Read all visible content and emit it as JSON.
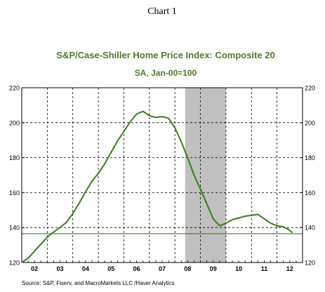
{
  "page_title": "Chart 1",
  "chart_data": {
    "type": "line",
    "title": "S&P/Case-Shiller Home Price Index: Composite 20",
    "subtitle": "SA, Jan-00=100",
    "source": "Source:  S&P, Fiserv, and MacroMarkets LLC /Haver Analytics",
    "x_tick_labels": [
      "02",
      "03",
      "04",
      "05",
      "06",
      "07",
      "08",
      "09",
      "10",
      "11",
      "12"
    ],
    "x_domain": [
      2001.5,
      2012.5
    ],
    "y_ticks": [
      120,
      140,
      160,
      180,
      200,
      220
    ],
    "ylim": [
      120,
      220
    ],
    "grid": true,
    "recession_band": [
      2007.9,
      2009.5
    ],
    "reference_line_y": 136.5,
    "colors": {
      "line": "#3a7d1e",
      "reference_line": "#3a7d1e",
      "band": "#c0c0c0",
      "title": "#4b7a2b",
      "grid": "#000000"
    },
    "series": [
      {
        "x": [
          2001.5,
          2001.75,
          2002.0,
          2002.25,
          2002.5,
          2002.75,
          2003.0,
          2003.25,
          2003.5,
          2003.75,
          2004.0,
          2004.25,
          2004.5,
          2004.75,
          2005.0,
          2005.25,
          2005.5,
          2005.75,
          2006.0,
          2006.25,
          2006.5,
          2006.75,
          2007.0,
          2007.25,
          2007.5,
          2007.75,
          2008.0,
          2008.25,
          2008.5,
          2008.75,
          2009.0,
          2009.25,
          2009.5,
          2009.75,
          2010.0,
          2010.25,
          2010.5,
          2010.75,
          2011.0,
          2011.25,
          2011.5,
          2011.75,
          2012.0,
          2012.1
        ],
        "values": [
          120,
          122.5,
          126.5,
          130.5,
          134.5,
          137.5,
          140.0,
          143.0,
          148.0,
          154.0,
          160.5,
          166.5,
          171.0,
          176.5,
          183.0,
          189.5,
          195.0,
          200.5,
          205.0,
          206.5,
          204.0,
          203.0,
          203.5,
          202.5,
          197.0,
          189.0,
          180.0,
          170.0,
          162.0,
          153.5,
          145.0,
          141.0,
          142.5,
          144.5,
          145.5,
          146.5,
          147.0,
          147.5,
          145.0,
          142.5,
          141.0,
          140.5,
          138.5,
          137.0
        ]
      }
    ]
  }
}
